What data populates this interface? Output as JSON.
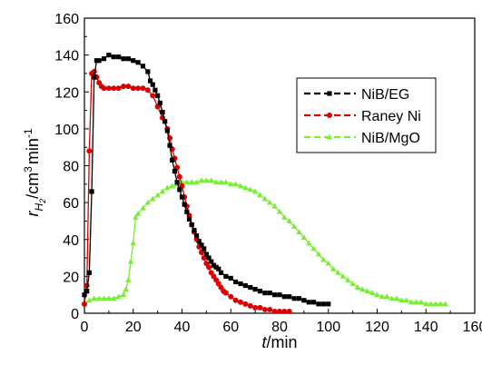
{
  "chart_data": {
    "type": "scatter",
    "xlabel": {
      "italic": "t",
      "rest": "/min"
    },
    "ylabel": {
      "r": "r",
      "sub": "H",
      "subsub": "2",
      "unit": "/cm",
      "pow": "3",
      "min": "min",
      "neg": "-1"
    },
    "xlim": [
      0,
      160
    ],
    "ylim": [
      0,
      160
    ],
    "xticks": [
      0,
      20,
      40,
      60,
      80,
      100,
      120,
      140,
      160
    ],
    "yticks": [
      0,
      20,
      40,
      60,
      80,
      100,
      120,
      140,
      160
    ],
    "xtick_labels": [
      "0",
      "20",
      "40",
      "60",
      "80",
      "100",
      "120",
      "140",
      "160"
    ],
    "ytick_labels": [
      "0",
      "20",
      "40",
      "60",
      "80",
      "100",
      "120",
      "140",
      "160"
    ],
    "legend_position": "top-right",
    "series": [
      {
        "name": "NiB/EG",
        "color": "#000000",
        "marker": "square",
        "points": [
          [
            0,
            10
          ],
          [
            1,
            12
          ],
          [
            2,
            22
          ],
          [
            3,
            66
          ],
          [
            4,
            128
          ],
          [
            5,
            137
          ],
          [
            6,
            137
          ],
          [
            8,
            138
          ],
          [
            10,
            140
          ],
          [
            12,
            139
          ],
          [
            14,
            139
          ],
          [
            16,
            138
          ],
          [
            18,
            138
          ],
          [
            20,
            137
          ],
          [
            22,
            136
          ],
          [
            24,
            134
          ],
          [
            26,
            131
          ],
          [
            27,
            126
          ],
          [
            28,
            124
          ],
          [
            29,
            121
          ],
          [
            30,
            118
          ],
          [
            31,
            114
          ],
          [
            32,
            109
          ],
          [
            33,
            104
          ],
          [
            34,
            99
          ],
          [
            35,
            91
          ],
          [
            36,
            83
          ],
          [
            37,
            77
          ],
          [
            38,
            71
          ],
          [
            39,
            67
          ],
          [
            40,
            63
          ],
          [
            41,
            59
          ],
          [
            42,
            55
          ],
          [
            43,
            51
          ],
          [
            44,
            48
          ],
          [
            45,
            45
          ],
          [
            46,
            42
          ],
          [
            47,
            39
          ],
          [
            48,
            37
          ],
          [
            49,
            35
          ],
          [
            50,
            32
          ],
          [
            51,
            30
          ],
          [
            52,
            28
          ],
          [
            53,
            26
          ],
          [
            54,
            25
          ],
          [
            55,
            24
          ],
          [
            56,
            22
          ],
          [
            58,
            20
          ],
          [
            60,
            19
          ],
          [
            62,
            17
          ],
          [
            64,
            16
          ],
          [
            66,
            15
          ],
          [
            68,
            14
          ],
          [
            70,
            13
          ],
          [
            72,
            12
          ],
          [
            74,
            11
          ],
          [
            76,
            11
          ],
          [
            78,
            10
          ],
          [
            80,
            10
          ],
          [
            82,
            9
          ],
          [
            84,
            9
          ],
          [
            86,
            8
          ],
          [
            88,
            8
          ],
          [
            90,
            7
          ],
          [
            92,
            6
          ],
          [
            94,
            6
          ],
          [
            96,
            5
          ],
          [
            98,
            5
          ],
          [
            100,
            5
          ]
        ]
      },
      {
        "name": "Raney Ni",
        "color": "#dd0000",
        "marker": "circle",
        "points": [
          [
            0,
            5
          ],
          [
            1,
            15
          ],
          [
            2,
            88
          ],
          [
            3,
            130
          ],
          [
            4,
            131
          ],
          [
            5,
            128
          ],
          [
            6,
            125
          ],
          [
            7,
            123
          ],
          [
            8,
            122
          ],
          [
            10,
            122
          ],
          [
            12,
            122
          ],
          [
            14,
            122
          ],
          [
            16,
            123
          ],
          [
            18,
            123
          ],
          [
            20,
            122
          ],
          [
            22,
            122
          ],
          [
            24,
            122
          ],
          [
            26,
            121
          ],
          [
            28,
            118
          ],
          [
            30,
            112
          ],
          [
            32,
            106
          ],
          [
            34,
            100
          ],
          [
            35,
            95
          ],
          [
            36,
            89
          ],
          [
            37,
            84
          ],
          [
            38,
            79
          ],
          [
            39,
            74
          ],
          [
            40,
            69
          ],
          [
            41,
            63
          ],
          [
            42,
            58
          ],
          [
            43,
            53
          ],
          [
            44,
            48
          ],
          [
            45,
            44
          ],
          [
            46,
            40
          ],
          [
            47,
            36
          ],
          [
            48,
            33
          ],
          [
            49,
            30
          ],
          [
            50,
            27
          ],
          [
            51,
            25
          ],
          [
            52,
            22
          ],
          [
            53,
            20
          ],
          [
            54,
            18
          ],
          [
            55,
            16
          ],
          [
            56,
            14
          ],
          [
            57,
            12
          ],
          [
            58,
            11
          ],
          [
            60,
            9
          ],
          [
            62,
            7
          ],
          [
            64,
            6
          ],
          [
            66,
            5
          ],
          [
            68,
            4
          ],
          [
            70,
            3
          ],
          [
            72,
            3
          ],
          [
            74,
            2
          ],
          [
            76,
            2
          ],
          [
            78,
            1
          ],
          [
            80,
            1
          ],
          [
            82,
            1
          ],
          [
            84,
            1
          ]
        ]
      },
      {
        "name": "NiB/MgO",
        "color": "#77ee33",
        "marker": "triangle",
        "points": [
          [
            0,
            5
          ],
          [
            2,
            7
          ],
          [
            4,
            8
          ],
          [
            6,
            8
          ],
          [
            8,
            8
          ],
          [
            10,
            8
          ],
          [
            12,
            8
          ],
          [
            14,
            9
          ],
          [
            16,
            10
          ],
          [
            17,
            13
          ],
          [
            18,
            18
          ],
          [
            19,
            28
          ],
          [
            20,
            38
          ],
          [
            21,
            52
          ],
          [
            22,
            54
          ],
          [
            24,
            57
          ],
          [
            26,
            60
          ],
          [
            28,
            62
          ],
          [
            30,
            64
          ],
          [
            32,
            66
          ],
          [
            34,
            68
          ],
          [
            36,
            69
          ],
          [
            38,
            70
          ],
          [
            40,
            71
          ],
          [
            42,
            71
          ],
          [
            44,
            71
          ],
          [
            46,
            71
          ],
          [
            48,
            72
          ],
          [
            50,
            72
          ],
          [
            52,
            72
          ],
          [
            54,
            71
          ],
          [
            56,
            71
          ],
          [
            58,
            71
          ],
          [
            60,
            70
          ],
          [
            62,
            70
          ],
          [
            64,
            69
          ],
          [
            66,
            68
          ],
          [
            68,
            67
          ],
          [
            70,
            66
          ],
          [
            72,
            64
          ],
          [
            74,
            62
          ],
          [
            76,
            60
          ],
          [
            78,
            58
          ],
          [
            80,
            55
          ],
          [
            82,
            52
          ],
          [
            84,
            50
          ],
          [
            86,
            47
          ],
          [
            88,
            44
          ],
          [
            90,
            41
          ],
          [
            92,
            38
          ],
          [
            94,
            35
          ],
          [
            96,
            32
          ],
          [
            98,
            29
          ],
          [
            100,
            27
          ],
          [
            102,
            24
          ],
          [
            104,
            22
          ],
          [
            106,
            20
          ],
          [
            108,
            18
          ],
          [
            110,
            16
          ],
          [
            112,
            14
          ],
          [
            114,
            13
          ],
          [
            116,
            12
          ],
          [
            118,
            11
          ],
          [
            120,
            10
          ],
          [
            122,
            9
          ],
          [
            124,
            9
          ],
          [
            126,
            8
          ],
          [
            128,
            8
          ],
          [
            130,
            7
          ],
          [
            132,
            7
          ],
          [
            134,
            6
          ],
          [
            136,
            6
          ],
          [
            138,
            6
          ],
          [
            140,
            5
          ],
          [
            142,
            5
          ],
          [
            144,
            5
          ],
          [
            146,
            5
          ],
          [
            148,
            5
          ]
        ]
      }
    ]
  }
}
